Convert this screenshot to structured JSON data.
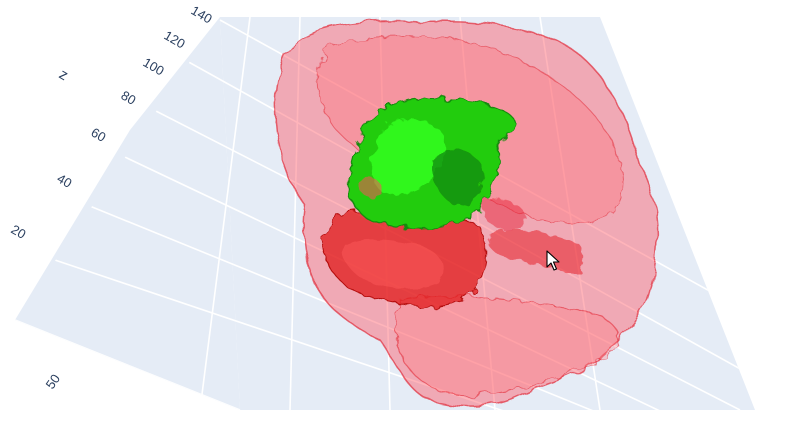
{
  "scene": {
    "axis_z": {
      "title": "z",
      "ticks": [
        "20",
        "40",
        "60",
        "80",
        "100",
        "120",
        "140"
      ]
    },
    "axis_floor": {
      "ticks": [
        "50"
      ]
    },
    "colors": {
      "plane": "#e5ecf6",
      "grid": "#ffffff",
      "tick_text": "#2a3f5f",
      "outer_mesh": "#ff4d5a",
      "outer_mesh_edge": "#e0202e",
      "inner_mass": "#e01818",
      "core_mesh": "#22cc11",
      "core_highlight": "#33ff22",
      "core_shadow": "#168a0a"
    }
  },
  "cursor": {
    "icon": "arrow-pointer-icon"
  }
}
